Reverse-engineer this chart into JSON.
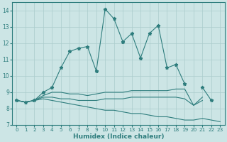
{
  "xlabel": "Humidex (Indice chaleur)",
  "x": [
    0,
    1,
    2,
    3,
    4,
    5,
    6,
    7,
    8,
    9,
    10,
    11,
    12,
    13,
    14,
    15,
    16,
    17,
    18,
    19,
    20,
    21,
    22,
    23
  ],
  "line_main": [
    8.5,
    8.4,
    8.5,
    9.0,
    9.3,
    10.5,
    11.5,
    11.7,
    11.8,
    10.3,
    14.1,
    13.5,
    12.1,
    12.6,
    11.1,
    12.6,
    13.1,
    10.5,
    10.7,
    9.5,
    null,
    9.3,
    8.5,
    null
  ],
  "line_flat1": [
    8.5,
    8.4,
    8.5,
    8.8,
    9.0,
    9.0,
    8.9,
    8.9,
    8.8,
    8.9,
    9.0,
    9.0,
    9.0,
    9.1,
    9.1,
    9.1,
    9.1,
    9.1,
    9.2,
    9.2,
    8.2,
    8.7,
    null,
    null
  ],
  "line_flat2": [
    8.5,
    8.4,
    8.5,
    8.7,
    8.7,
    8.6,
    8.6,
    8.5,
    8.5,
    8.5,
    8.6,
    8.6,
    8.6,
    8.7,
    8.7,
    8.7,
    8.7,
    8.7,
    8.7,
    8.6,
    8.2,
    8.5,
    null,
    null
  ],
  "line_desc": [
    8.5,
    8.4,
    8.5,
    8.6,
    8.5,
    8.4,
    8.3,
    8.2,
    8.1,
    8.0,
    7.9,
    7.9,
    7.8,
    7.7,
    7.7,
    7.6,
    7.5,
    7.5,
    7.4,
    7.3,
    7.3,
    7.4,
    7.3,
    7.2
  ],
  "color": "#2e7d7d",
  "bg_color": "#cce5e5",
  "grid_color": "#aacccc",
  "ylim": [
    7,
    14.5
  ],
  "xlim": [
    -0.5,
    23.5
  ],
  "yticks": [
    7,
    8,
    9,
    10,
    11,
    12,
    13,
    14
  ],
  "xticks": [
    0,
    1,
    2,
    3,
    4,
    5,
    6,
    7,
    8,
    9,
    10,
    11,
    12,
    13,
    14,
    15,
    16,
    17,
    18,
    19,
    20,
    21,
    22,
    23
  ]
}
